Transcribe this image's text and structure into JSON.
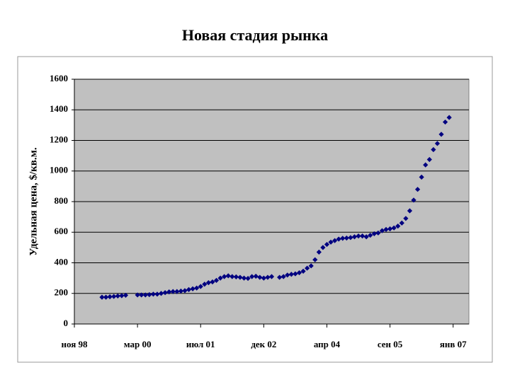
{
  "chart_data": {
    "type": "scatter",
    "title": "Новая стадия рынка",
    "y_label": "Удельная цена, $/кв.м.",
    "categories": [
      "ноя 98",
      null,
      null,
      null,
      null,
      null,
      null,
      null,
      null,
      null,
      null,
      null,
      null,
      null,
      null,
      null,
      "мар 00",
      null,
      null,
      null,
      null,
      null,
      null,
      null,
      null,
      null,
      null,
      null,
      null,
      null,
      null,
      null,
      "июл 01",
      null,
      null,
      null,
      null,
      null,
      null,
      null,
      null,
      null,
      null,
      null,
      null,
      null,
      null,
      null,
      "дек 02",
      null,
      null,
      null,
      null,
      null,
      null,
      null,
      null,
      null,
      null,
      null,
      null,
      null,
      null,
      null,
      "апр 04",
      null,
      null,
      null,
      null,
      null,
      null,
      null,
      null,
      null,
      null,
      null,
      null,
      null,
      null,
      null,
      "сен 05",
      null,
      null,
      null,
      null,
      null,
      null,
      null,
      null,
      null,
      null,
      null,
      null,
      null,
      null,
      null,
      "янв 07",
      null,
      null,
      null
    ],
    "values": [
      null,
      null,
      null,
      null,
      null,
      null,
      null,
      175,
      175,
      178,
      180,
      183,
      185,
      188,
      null,
      null,
      190,
      190,
      190,
      192,
      195,
      195,
      200,
      205,
      210,
      212,
      212,
      215,
      218,
      225,
      230,
      235,
      245,
      260,
      270,
      275,
      285,
      300,
      310,
      315,
      310,
      308,
      305,
      300,
      298,
      310,
      312,
      305,
      300,
      305,
      310,
      null,
      305,
      310,
      320,
      325,
      328,
      335,
      345,
      365,
      380,
      420,
      470,
      500,
      520,
      535,
      545,
      555,
      560,
      562,
      565,
      570,
      575,
      575,
      570,
      580,
      590,
      595,
      610,
      618,
      622,
      628,
      640,
      660,
      690,
      740,
      810,
      880,
      960,
      1040,
      1075,
      1140,
      1180,
      1240,
      1320,
      1350,
      null,
      null,
      null,
      null
    ],
    "color": "#000080",
    "marker": "diamond",
    "ylim": [
      0,
      1600
    ],
    "yticks": [
      0,
      200,
      400,
      600,
      800,
      1000,
      1200,
      1400,
      1600
    ],
    "grid": true
  }
}
